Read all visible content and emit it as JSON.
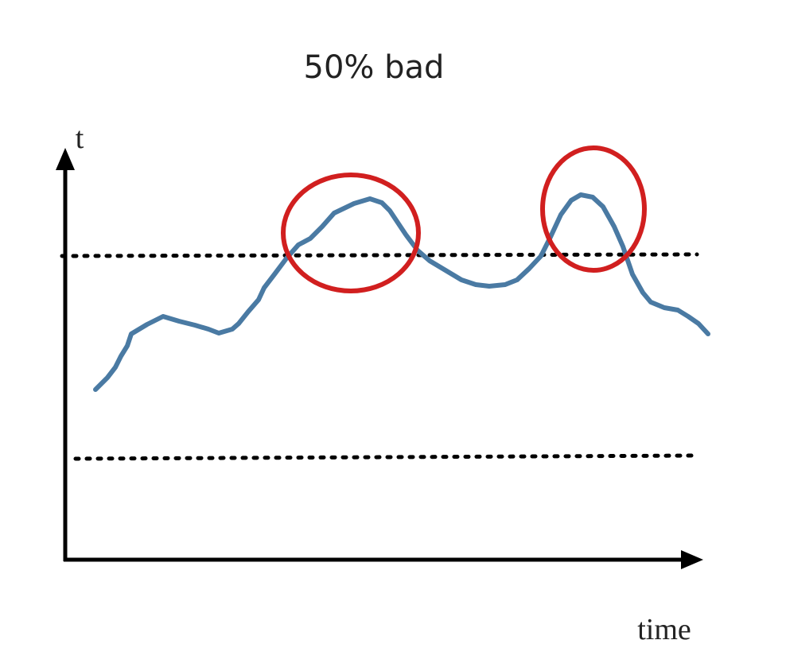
{
  "title": "50% bad",
  "y_axis_label": "t",
  "x_axis_label": "time"
}
